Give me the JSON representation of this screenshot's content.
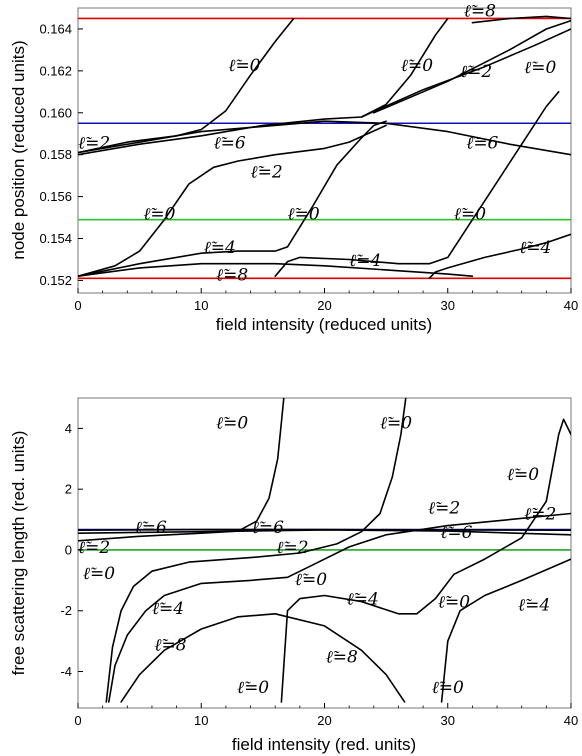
{
  "chart_data": [
    {
      "type": "line",
      "xlabel": "field intensity (reduced units)",
      "ylabel": "node position (reduced units)",
      "xlim": [
        0,
        40
      ],
      "ylim": [
        0.1514,
        0.165
      ],
      "xticks": [
        "0",
        "10",
        "20",
        "30",
        "40"
      ],
      "yticks": [
        "0.152",
        "0.154",
        "0.156",
        "0.158",
        "0.160",
        "0.162",
        "0.164"
      ],
      "hlines": [
        {
          "y": 0.1645,
          "color": "#e00000"
        },
        {
          "y": 0.1595,
          "color": "#1010c0"
        },
        {
          "y": 0.1549,
          "color": "#22cc22"
        },
        {
          "y": 0.1521,
          "color": "#e00000"
        }
      ],
      "series": [
        {
          "points": [
            [
              0,
              0.1581
            ],
            [
              4,
              0.1586
            ],
            [
              8,
              0.1589
            ],
            [
              10,
              0.1592
            ],
            [
              12,
              0.1601
            ],
            [
              14,
              0.1618
            ],
            [
              16,
              0.1634
            ],
            [
              17.5,
              0.1645
            ]
          ]
        },
        {
          "points": [
            [
              0,
              0.158
            ],
            [
              5,
              0.1585
            ],
            [
              10,
              0.1589
            ],
            [
              15,
              0.1594
            ],
            [
              20,
              0.1597
            ],
            [
              23,
              0.1598
            ],
            [
              25,
              0.1604
            ],
            [
              27,
              0.1618
            ],
            [
              29,
              0.1637
            ],
            [
              30,
              0.1645
            ]
          ]
        },
        {
          "points": [
            [
              0,
              0.1581
            ],
            [
              10,
              0.1591
            ],
            [
              20,
              0.1596
            ],
            [
              25,
              0.1595
            ],
            [
              30,
              0.1591
            ],
            [
              35,
              0.1585
            ],
            [
              40,
              0.158
            ]
          ]
        },
        {
          "points": [
            [
              23,
              0.1598
            ],
            [
              28,
              0.1611
            ],
            [
              33,
              0.1622
            ],
            [
              37,
              0.1632
            ],
            [
              40,
              0.164
            ]
          ]
        },
        {
          "points": [
            [
              24,
              0.16
            ],
            [
              30,
              0.1615
            ],
            [
              35,
              0.163
            ],
            [
              38,
              0.164
            ],
            [
              40,
              0.1644
            ]
          ]
        },
        {
          "points": [
            [
              32,
              0.1643
            ],
            [
              35,
              0.1645
            ],
            [
              38,
              0.1646
            ],
            [
              40,
              0.1645
            ]
          ]
        },
        {
          "points": [
            [
              0,
              0.1522
            ],
            [
              3,
              0.1527
            ],
            [
              5,
              0.1534
            ],
            [
              7,
              0.1549
            ],
            [
              9,
              0.1566
            ],
            [
              11,
              0.1574
            ],
            [
              13,
              0.1577
            ],
            [
              16,
              0.158
            ],
            [
              20,
              0.1583
            ],
            [
              22,
              0.1586
            ],
            [
              25,
              0.1594
            ]
          ]
        },
        {
          "points": [
            [
              0,
              0.1522
            ],
            [
              5,
              0.1528
            ],
            [
              10,
              0.1533
            ],
            [
              13,
              0.1534
            ],
            [
              16,
              0.1534
            ],
            [
              17,
              0.1536
            ],
            [
              19,
              0.1555
            ],
            [
              21,
              0.1575
            ],
            [
              23,
              0.1588
            ],
            [
              24,
              0.1594
            ],
            [
              25,
              0.1596
            ]
          ]
        },
        {
          "points": [
            [
              28.5,
              0.1528
            ],
            [
              30,
              0.1531
            ],
            [
              32,
              0.1549
            ],
            [
              34,
              0.1567
            ],
            [
              36,
              0.1585
            ],
            [
              38,
              0.1603
            ],
            [
              39,
              0.161
            ]
          ]
        },
        {
          "points": [
            [
              0,
              0.1522
            ],
            [
              5,
              0.1526
            ],
            [
              10,
              0.1528
            ],
            [
              16,
              0.1528
            ],
            [
              20,
              0.1527
            ],
            [
              25,
              0.1525
            ],
            [
              30,
              0.1523
            ],
            [
              32,
              0.1522
            ]
          ]
        },
        {
          "points": [
            [
              16,
              0.1522
            ],
            [
              17,
              0.1529
            ],
            [
              18,
              0.1531
            ],
            [
              22,
              0.153
            ],
            [
              26,
              0.1528
            ],
            [
              28.5,
              0.1528
            ]
          ]
        },
        {
          "points": [
            [
              28.5,
              0.1521
            ],
            [
              29,
              0.1524
            ],
            [
              30,
              0.1526
            ],
            [
              33,
              0.1531
            ],
            [
              36,
              0.1535
            ],
            [
              38,
              0.1538
            ],
            [
              40,
              0.1542
            ]
          ]
        }
      ],
      "annotations": [
        {
          "text": "ℓ̃=0",
          "x": 12.2,
          "y": 0.162
        },
        {
          "text": "ℓ̃=0",
          "x": 26.2,
          "y": 0.162
        },
        {
          "text": "ℓ̃=0",
          "x": 36.2,
          "y": 0.1619
        },
        {
          "text": "ℓ̃=8",
          "x": 31.3,
          "y": 0.1646
        },
        {
          "text": "ℓ̃=2",
          "x": 31.0,
          "y": 0.1617
        },
        {
          "text": "ℓ̃=2",
          "x": 0.0,
          "y": 0.1583
        },
        {
          "text": "ℓ̃=6",
          "x": 11.0,
          "y": 0.1583
        },
        {
          "text": "ℓ̃=6",
          "x": 31.5,
          "y": 0.1583
        },
        {
          "text": "ℓ̃=2",
          "x": 14.0,
          "y": 0.1569
        },
        {
          "text": "ℓ̃=0",
          "x": 5.3,
          "y": 0.1549
        },
        {
          "text": "ℓ̃=0",
          "x": 17.0,
          "y": 0.1549
        },
        {
          "text": "ℓ̃=0",
          "x": 30.5,
          "y": 0.1549
        },
        {
          "text": "ℓ̃=4",
          "x": 10.2,
          "y": 0.1533
        },
        {
          "text": "ℓ̃=4",
          "x": 22.0,
          "y": 0.1527
        },
        {
          "text": "ℓ̃=4",
          "x": 35.8,
          "y": 0.1533
        },
        {
          "text": "ℓ̃=8",
          "x": 11.2,
          "y": 0.152
        }
      ]
    },
    {
      "type": "line",
      "xlabel": "field intensity (red. units)",
      "ylabel": "free scattering length (red. units)",
      "xlim": [
        0,
        40
      ],
      "ylim": [
        -5.2,
        5
      ],
      "xticks": [
        "0",
        "10",
        "20",
        "30",
        "40"
      ],
      "yticks": [
        "-4",
        "-2",
        "0",
        "2",
        "4"
      ],
      "hlines": [
        {
          "y": 0.67,
          "color": "#1010c0"
        },
        {
          "y": 0.0,
          "color": "#22aa22"
        }
      ],
      "series": [
        {
          "points": [
            [
              0,
              0.3
            ],
            [
              5,
              0.45
            ],
            [
              10,
              0.55
            ],
            [
              13,
              0.62
            ],
            [
              14.5,
              0.95
            ],
            [
              15.5,
              1.7
            ],
            [
              16.2,
              3.0
            ],
            [
              16.5,
              4.2
            ],
            [
              16.7,
              5.0
            ]
          ]
        },
        {
          "points": [
            [
              0,
              0.65
            ],
            [
              10,
              0.67
            ],
            [
              20,
              0.67
            ],
            [
              30,
              0.66
            ],
            [
              40,
              0.65
            ]
          ]
        },
        {
          "points": [
            [
              0,
              0.55
            ],
            [
              10,
              0.6
            ],
            [
              20,
              0.66
            ],
            [
              30,
              0.62
            ],
            [
              40,
              0.5
            ]
          ]
        },
        {
          "points": [
            [
              2.3,
              -5.0
            ],
            [
              2.8,
              -3.2
            ],
            [
              3.5,
              -2.0
            ],
            [
              4.5,
              -1.2
            ],
            [
              6,
              -0.7
            ],
            [
              9,
              -0.4
            ],
            [
              14,
              -0.25
            ],
            [
              18,
              -0.1
            ],
            [
              21,
              0.2
            ],
            [
              23,
              0.6
            ],
            [
              24.5,
              1.2
            ],
            [
              25.5,
              2.4
            ],
            [
              26.2,
              3.8
            ],
            [
              26.6,
              5.0
            ]
          ]
        },
        {
          "points": [
            [
              2.5,
              -5.0
            ],
            [
              3,
              -3.8
            ],
            [
              4,
              -2.8
            ],
            [
              5.5,
              -2.0
            ],
            [
              7,
              -1.5
            ],
            [
              10,
              -1.1
            ],
            [
              14,
              -1.0
            ],
            [
              17,
              -0.9
            ],
            [
              19,
              -0.5
            ],
            [
              22,
              0.1
            ],
            [
              25,
              0.5
            ],
            [
              30,
              0.8
            ],
            [
              35,
              1.0
            ],
            [
              40,
              1.2
            ]
          ]
        },
        {
          "points": [
            [
              3.5,
              -5.0
            ],
            [
              5,
              -4.1
            ],
            [
              7,
              -3.3
            ],
            [
              10,
              -2.6
            ],
            [
              13,
              -2.2
            ],
            [
              16,
              -2.1
            ],
            [
              20,
              -2.5
            ],
            [
              23,
              -3.3
            ],
            [
              25,
              -4.1
            ],
            [
              26.5,
              -5.0
            ]
          ]
        },
        {
          "points": [
            [
              16.5,
              -5.0
            ],
            [
              17,
              -2.0
            ],
            [
              18,
              -1.6
            ],
            [
              20,
              -1.5
            ],
            [
              23,
              -1.7
            ],
            [
              26,
              -2.1
            ],
            [
              27.5,
              -2.1
            ],
            [
              29,
              -1.6
            ],
            [
              30.5,
              -0.8
            ],
            [
              33,
              -0.3
            ],
            [
              36,
              0.4
            ],
            [
              38,
              1.6
            ],
            [
              39,
              3.8
            ],
            [
              39.4,
              4.3
            ],
            [
              40,
              3.8
            ]
          ]
        },
        {
          "points": [
            [
              29.5,
              -5.0
            ],
            [
              30,
              -3.0
            ],
            [
              31,
              -2.0
            ],
            [
              33,
              -1.5
            ],
            [
              36,
              -1.0
            ],
            [
              40,
              -0.3
            ]
          ]
        }
      ],
      "annotations": [
        {
          "text": "ℓ̃=0",
          "x": 11.2,
          "y": 4.0
        },
        {
          "text": "ℓ̃=0",
          "x": 24.5,
          "y": 4.0
        },
        {
          "text": "ℓ̃=0",
          "x": 34.8,
          "y": 2.3
        },
        {
          "text": "ℓ̃=6",
          "x": 4.6,
          "y": 0.55
        },
        {
          "text": "ℓ̃=6",
          "x": 14.1,
          "y": 0.55
        },
        {
          "text": "ℓ̃=2",
          "x": 28.4,
          "y": 1.2
        },
        {
          "text": "ℓ̃=6",
          "x": 29.4,
          "y": 0.4
        },
        {
          "text": "ℓ̃=2",
          "x": 36.2,
          "y": 1.0
        },
        {
          "text": "ℓ̃=2",
          "x": 0.0,
          "y": -0.1
        },
        {
          "text": "ℓ̃=2",
          "x": 16.1,
          "y": -0.1
        },
        {
          "text": "ℓ̃=0",
          "x": 17.6,
          "y": -1.15
        },
        {
          "text": "ℓ̃=0",
          "x": 0.4,
          "y": -0.95
        },
        {
          "text": "ℓ̃=4",
          "x": 6.0,
          "y": -2.1
        },
        {
          "text": "ℓ̃=4",
          "x": 21.8,
          "y": -1.8
        },
        {
          "text": "ℓ̃=0",
          "x": 29.2,
          "y": -1.9
        },
        {
          "text": "ℓ̃=4",
          "x": 35.7,
          "y": -2.0
        },
        {
          "text": "ℓ̃=8",
          "x": 6.2,
          "y": -3.3
        },
        {
          "text": "ℓ̃=8",
          "x": 20.1,
          "y": -3.7
        },
        {
          "text": "ℓ̃=0",
          "x": 12.9,
          "y": -4.7
        },
        {
          "text": "ℓ̃=0",
          "x": 28.7,
          "y": -4.7
        }
      ]
    }
  ]
}
